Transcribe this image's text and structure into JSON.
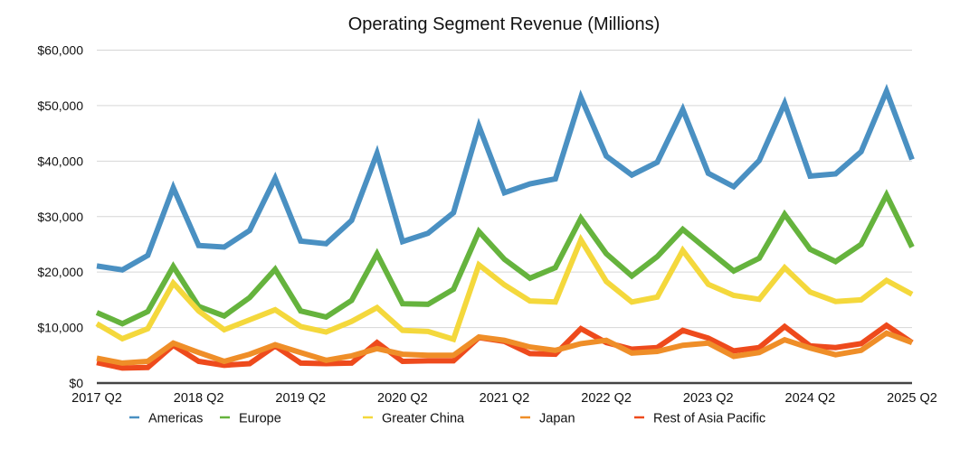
{
  "chart_data": {
    "type": "line",
    "title": "Operating Segment Revenue (Millions)",
    "xlabel": "",
    "ylabel": "",
    "ylim": [
      0,
      60000
    ],
    "yticks": [
      0,
      10000,
      20000,
      30000,
      40000,
      50000,
      60000
    ],
    "ytick_labels": [
      "$0",
      "$10,000",
      "$20,000",
      "$30,000",
      "$40,000",
      "$50,000",
      "$60,000"
    ],
    "grid": true,
    "legend_position": "bottom",
    "x": [
      "2017 Q2",
      "2017 Q3",
      "2017 Q4",
      "2018 Q1",
      "2018 Q2",
      "2018 Q3",
      "2018 Q4",
      "2019 Q1",
      "2019 Q2",
      "2019 Q3",
      "2019 Q4",
      "2020 Q1",
      "2020 Q2",
      "2020 Q3",
      "2020 Q4",
      "2021 Q1",
      "2021 Q2",
      "2021 Q3",
      "2021 Q4",
      "2022 Q1",
      "2022 Q2",
      "2022 Q3",
      "2022 Q4",
      "2023 Q1",
      "2023 Q2",
      "2023 Q3",
      "2023 Q4",
      "2024 Q1",
      "2024 Q2",
      "2024 Q3",
      "2024 Q4",
      "2025 Q1",
      "2025 Q2"
    ],
    "xtick_labels": [
      "2017 Q2",
      "2018 Q2",
      "2019 Q2",
      "2020 Q2",
      "2021 Q2",
      "2022 Q2",
      "2023 Q2",
      "2024 Q2",
      "2025 Q2"
    ],
    "series": [
      {
        "name": "Americas",
        "color": "#4a90c2",
        "values": [
          21100,
          20400,
          23000,
          35200,
          24800,
          24500,
          27500,
          36900,
          25600,
          25100,
          29300,
          41400,
          25500,
          27000,
          30700,
          46300,
          34300,
          35900,
          36800,
          51500,
          40900,
          37500,
          39800,
          49300,
          37800,
          35400,
          40100,
          50400,
          37300,
          37700,
          41700,
          52600,
          40300
        ]
      },
      {
        "name": "Europe",
        "color": "#65b33d",
        "values": [
          12700,
          10700,
          12900,
          21000,
          13800,
          12100,
          15400,
          20500,
          13000,
          11900,
          14900,
          23300,
          14300,
          14200,
          16900,
          27300,
          22300,
          18900,
          20800,
          29700,
          23300,
          19300,
          22800,
          27700,
          23900,
          20200,
          22500,
          30400,
          24100,
          21900,
          25000,
          33900,
          24500
        ]
      },
      {
        "name": "Greater China",
        "color": "#f4d83c",
        "values": [
          10700,
          8000,
          9800,
          18000,
          13000,
          9600,
          11400,
          13200,
          10200,
          9200,
          11100,
          13600,
          9500,
          9300,
          7900,
          21300,
          17700,
          14800,
          14600,
          25800,
          18300,
          14600,
          15500,
          23900,
          17800,
          15800,
          15100,
          20800,
          16400,
          14700,
          15000,
          18500,
          16000
        ]
      },
      {
        "name": "Japan",
        "color": "#ef8e28",
        "values": [
          4500,
          3600,
          3900,
          7200,
          5500,
          3900,
          5200,
          6900,
          5500,
          4100,
          4900,
          6200,
          5200,
          5000,
          5000,
          8300,
          7700,
          6500,
          5900,
          7100,
          7700,
          5400,
          5700,
          6800,
          7200,
          4800,
          5500,
          7800,
          6300,
          5100,
          5900,
          9000,
          7300
        ]
      },
      {
        "name": "Rest of Asia Pacific",
        "color": "#ee4a1c",
        "values": [
          3700,
          2700,
          2800,
          6800,
          3900,
          3200,
          3500,
          6700,
          3600,
          3500,
          3600,
          7300,
          3900,
          4000,
          4000,
          8200,
          7500,
          5300,
          5200,
          9800,
          7300,
          6100,
          6400,
          9500,
          8100,
          5800,
          6400,
          10200,
          6700,
          6400,
          7100,
          10400,
          7300
        ]
      }
    ]
  }
}
